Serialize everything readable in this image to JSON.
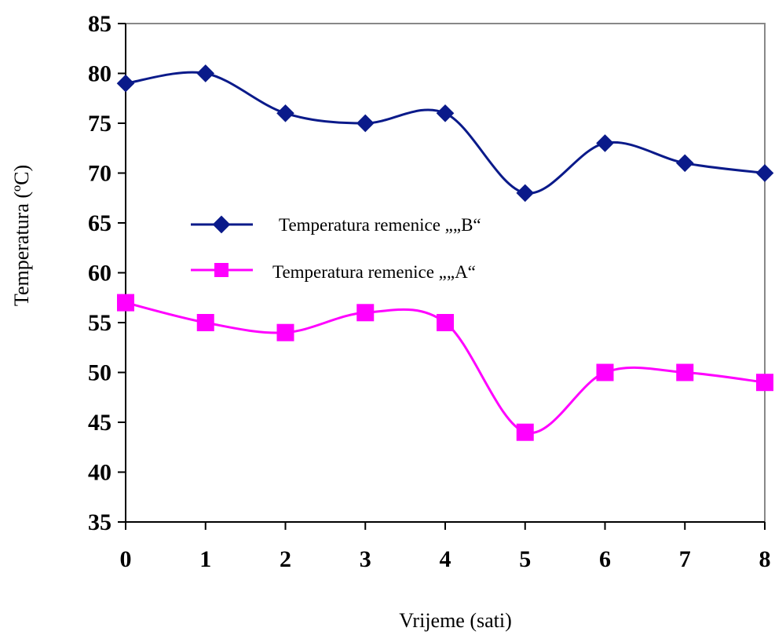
{
  "chart_data": {
    "type": "line",
    "title": "",
    "xlabel": "Vrijeme (sati)",
    "ylabel": "Temperatura (ºC)",
    "x": [
      0,
      1,
      2,
      3,
      4,
      5,
      6,
      7,
      8
    ],
    "xlim": [
      0,
      8
    ],
    "ylim": [
      35,
      85
    ],
    "yticks": [
      35,
      40,
      45,
      50,
      55,
      60,
      65,
      70,
      75,
      80,
      85
    ],
    "xticks": [
      0,
      1,
      2,
      3,
      4,
      5,
      6,
      7,
      8
    ],
    "grid": false,
    "legend": "inside-left",
    "series": [
      {
        "name": "Temperatura remenice „„B“",
        "values": [
          79,
          80,
          76,
          75,
          76,
          68,
          73,
          71,
          70
        ],
        "color": "#0a1a8a",
        "marker": "diamond",
        "smooth": true
      },
      {
        "name": "Temperatura remenice „„A“",
        "values": [
          57,
          55,
          54,
          56,
          55,
          44,
          50,
          50,
          49
        ],
        "color": "#ff00ff",
        "marker": "square",
        "smooth": true
      }
    ]
  }
}
